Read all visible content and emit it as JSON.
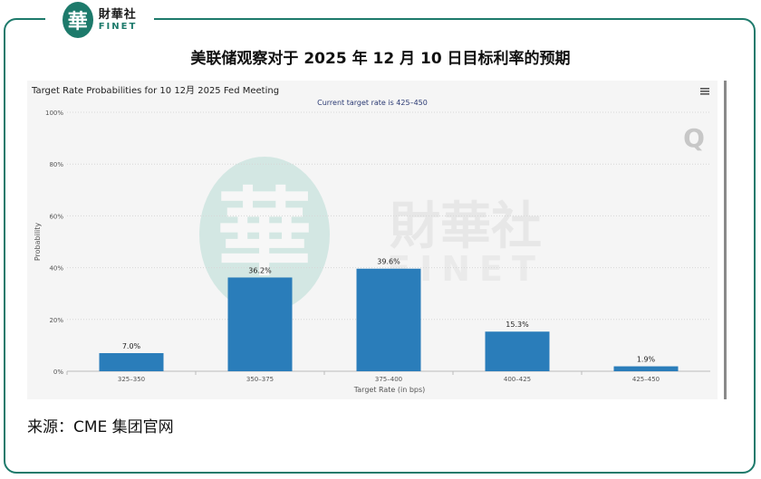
{
  "brand": {
    "logo_char": "華",
    "name_cn": "財華社",
    "name_en": "FINET"
  },
  "page_title": "美联储观察对于 2025 年 12 月 10 日目标利率的预期",
  "source": "来源：CME 集团官网",
  "watermark": {
    "logo_char": "華",
    "name_cn": "財華社",
    "name_en": "FINET"
  },
  "chart_data": {
    "type": "bar",
    "title": "Target Rate Probabilities for 10 12月 2025 Fed Meeting",
    "subtitle": "Current target rate is 425–450",
    "xlabel": "Target Rate (in bps)",
    "ylabel": "Probability",
    "categories": [
      "325–350",
      "350–375",
      "375–400",
      "400–425",
      "425–450"
    ],
    "values": [
      7.0,
      36.2,
      39.6,
      15.3,
      1.9
    ],
    "data_labels": [
      "7.0%",
      "36.2%",
      "39.6%",
      "15.3%",
      "1.9%"
    ],
    "ylim": [
      0,
      100
    ],
    "yticks": [
      0,
      20,
      40,
      60,
      80,
      100
    ],
    "ytick_labels": [
      "0%",
      "20%",
      "40%",
      "60%",
      "80%",
      "100%"
    ],
    "grid": true,
    "bar_color": "#2a7dba"
  },
  "menu_icon": "hamburger-menu-icon",
  "chart_logo": "Q"
}
